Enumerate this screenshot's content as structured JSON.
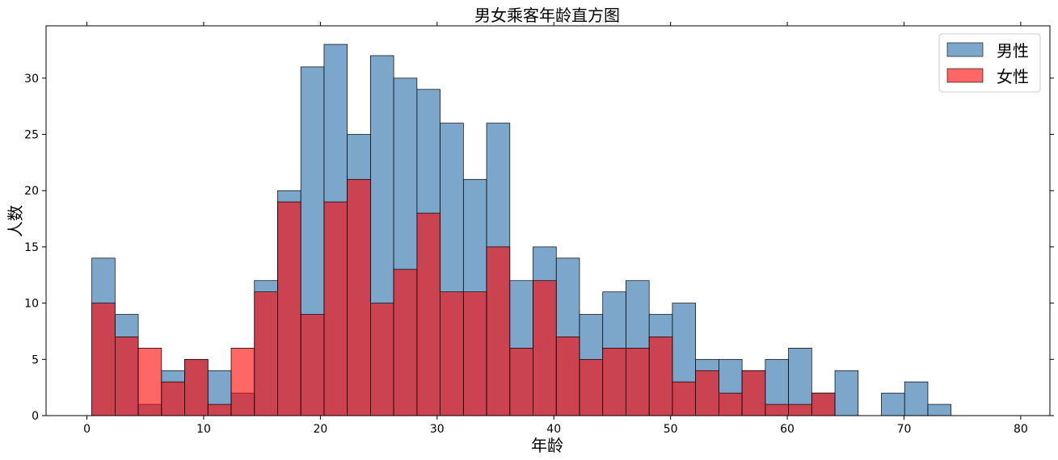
{
  "chart_data": {
    "type": "bar",
    "title": "男女乘客年龄直方图",
    "xlabel": "年龄",
    "ylabel": "人数",
    "xlim": [
      -3.5,
      82.5
    ],
    "ylim": [
      0,
      34.65
    ],
    "xticks": [
      0,
      10,
      20,
      30,
      40,
      50,
      60,
      70,
      80
    ],
    "yticks": [
      0,
      5,
      10,
      15,
      20,
      25,
      30
    ],
    "bin_start": 0.42,
    "bin_width": 1.9895,
    "legend_position": "top-right",
    "series": [
      {
        "name": "男性",
        "color": "#4682b4",
        "values": [
          14,
          9,
          1,
          4,
          5,
          4,
          2,
          12,
          20,
          31,
          33,
          25,
          32,
          30,
          29,
          26,
          21,
          26,
          12,
          15,
          14,
          9,
          11,
          12,
          9,
          10,
          5,
          5,
          4,
          5,
          6,
          2,
          4,
          0,
          2,
          3,
          1,
          0,
          0,
          0
        ]
      },
      {
        "name": "女性",
        "color": "#ff0000",
        "values": [
          10,
          7,
          6,
          3,
          5,
          1,
          6,
          11,
          19,
          9,
          19,
          21,
          10,
          13,
          18,
          11,
          11,
          15,
          6,
          12,
          7,
          5,
          6,
          6,
          7,
          3,
          4,
          2,
          4,
          1,
          1,
          2,
          0,
          0,
          0,
          0,
          0,
          0,
          0,
          0
        ]
      }
    ]
  }
}
